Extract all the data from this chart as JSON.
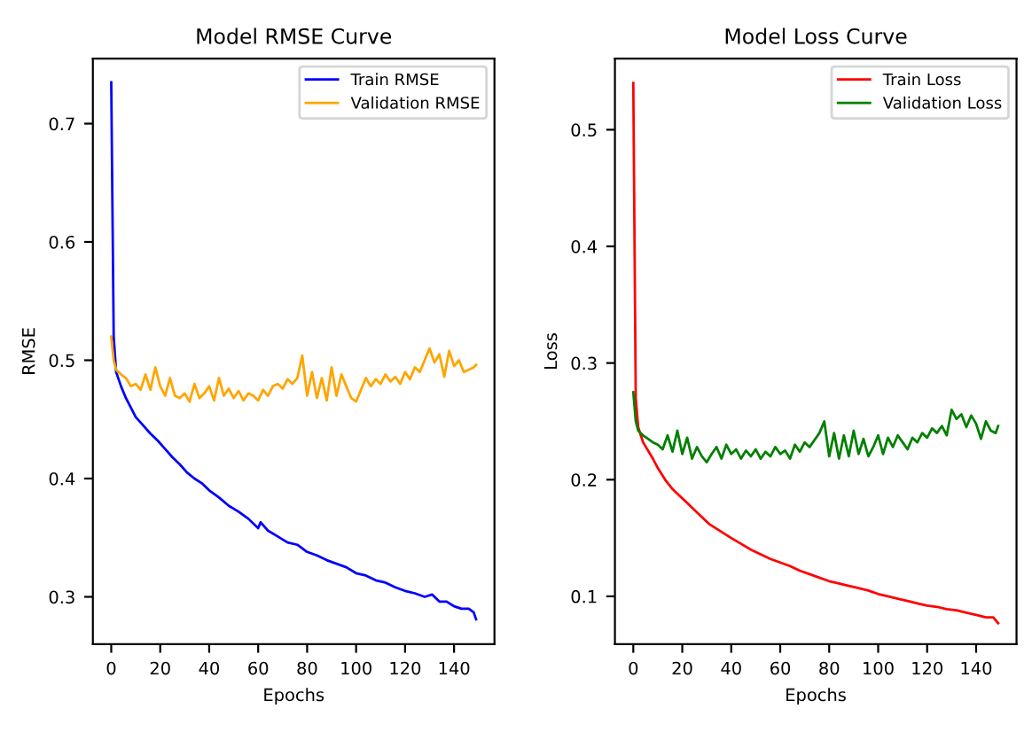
{
  "chart_data": [
    {
      "type": "line",
      "title": "Model RMSE Curve",
      "xlabel": "Epochs",
      "ylabel": "RMSE",
      "xlim": [
        -7.5,
        156.5
      ],
      "xticks": [
        0,
        20,
        40,
        60,
        80,
        100,
        120,
        140
      ],
      "ylim": [
        0.26,
        0.755
      ],
      "yticks": [
        0.3,
        0.4,
        0.5,
        0.6,
        0.7
      ],
      "grid": false,
      "legend": "top right",
      "series": [
        {
          "name": "Train RMSE",
          "color": "#0000ff",
          "x": [
            0,
            1,
            2,
            4,
            6,
            8,
            10,
            13,
            16,
            19,
            22,
            25,
            28,
            31,
            34,
            37,
            40,
            44,
            48,
            52,
            56,
            60,
            61,
            64,
            68,
            72,
            76,
            80,
            84,
            88,
            92,
            96,
            100,
            104,
            108,
            112,
            116,
            120,
            124,
            128,
            131,
            134,
            137,
            140,
            143,
            146,
            148,
            149
          ],
          "values": [
            0.735,
            0.52,
            0.49,
            0.478,
            0.468,
            0.46,
            0.452,
            0.445,
            0.438,
            0.432,
            0.425,
            0.418,
            0.412,
            0.405,
            0.4,
            0.396,
            0.39,
            0.384,
            0.377,
            0.372,
            0.366,
            0.358,
            0.363,
            0.356,
            0.351,
            0.346,
            0.344,
            0.338,
            0.335,
            0.331,
            0.328,
            0.325,
            0.32,
            0.318,
            0.314,
            0.312,
            0.308,
            0.305,
            0.303,
            0.3,
            0.302,
            0.296,
            0.296,
            0.292,
            0.29,
            0.29,
            0.287,
            0.281
          ]
        },
        {
          "name": "Validation RMSE",
          "color": "#ffa500",
          "x": [
            0,
            1,
            2,
            4,
            6,
            8,
            10,
            12,
            14,
            16,
            18,
            20,
            22,
            24,
            26,
            28,
            30,
            32,
            34,
            36,
            38,
            40,
            42,
            44,
            46,
            48,
            50,
            52,
            54,
            56,
            58,
            60,
            62,
            64,
            66,
            68,
            70,
            72,
            74,
            76,
            78,
            80,
            82,
            84,
            86,
            88,
            90,
            92,
            94,
            96,
            98,
            100,
            102,
            104,
            106,
            108,
            110,
            112,
            114,
            116,
            118,
            120,
            122,
            124,
            126,
            128,
            130,
            132,
            134,
            136,
            138,
            140,
            142,
            144,
            146,
            148,
            149
          ],
          "values": [
            0.52,
            0.5,
            0.492,
            0.488,
            0.485,
            0.478,
            0.48,
            0.475,
            0.488,
            0.475,
            0.494,
            0.478,
            0.47,
            0.485,
            0.47,
            0.468,
            0.472,
            0.465,
            0.48,
            0.468,
            0.472,
            0.478,
            0.466,
            0.485,
            0.47,
            0.476,
            0.468,
            0.474,
            0.466,
            0.472,
            0.47,
            0.466,
            0.475,
            0.47,
            0.478,
            0.48,
            0.476,
            0.484,
            0.48,
            0.485,
            0.504,
            0.47,
            0.49,
            0.468,
            0.485,
            0.466,
            0.494,
            0.47,
            0.488,
            0.478,
            0.468,
            0.465,
            0.475,
            0.485,
            0.478,
            0.484,
            0.48,
            0.488,
            0.482,
            0.486,
            0.48,
            0.49,
            0.484,
            0.494,
            0.49,
            0.5,
            0.51,
            0.498,
            0.505,
            0.486,
            0.508,
            0.495,
            0.5,
            0.49,
            0.492,
            0.494,
            0.496
          ]
        }
      ]
    },
    {
      "type": "line",
      "title": "Model Loss Curve",
      "xlabel": "Epochs",
      "ylabel": "Loss",
      "xlim": [
        -7.5,
        156.5
      ],
      "xticks": [
        0,
        20,
        40,
        60,
        80,
        100,
        120,
        140
      ],
      "ylim": [
        0.059,
        0.561
      ],
      "yticks": [
        0.1,
        0.2,
        0.3,
        0.4,
        0.5
      ],
      "grid": false,
      "legend": "top right",
      "series": [
        {
          "name": "Train Loss",
          "color": "#ff0000",
          "x": [
            0,
            1,
            2,
            4,
            6,
            8,
            10,
            13,
            16,
            19,
            22,
            25,
            28,
            31,
            34,
            37,
            40,
            44,
            48,
            52,
            56,
            60,
            64,
            68,
            72,
            76,
            80,
            84,
            88,
            92,
            96,
            100,
            104,
            108,
            112,
            116,
            120,
            124,
            128,
            132,
            136,
            140,
            144,
            147,
            149
          ],
          "values": [
            0.54,
            0.27,
            0.245,
            0.232,
            0.225,
            0.218,
            0.21,
            0.2,
            0.192,
            0.186,
            0.18,
            0.174,
            0.168,
            0.162,
            0.158,
            0.154,
            0.15,
            0.145,
            0.14,
            0.136,
            0.132,
            0.129,
            0.126,
            0.122,
            0.119,
            0.116,
            0.113,
            0.111,
            0.109,
            0.107,
            0.105,
            0.102,
            0.1,
            0.098,
            0.096,
            0.094,
            0.092,
            0.091,
            0.089,
            0.088,
            0.086,
            0.084,
            0.082,
            0.082,
            0.077
          ]
        },
        {
          "name": "Validation Loss",
          "color": "#008000",
          "x": [
            0,
            1,
            2,
            4,
            6,
            8,
            10,
            12,
            14,
            16,
            18,
            20,
            22,
            24,
            26,
            28,
            30,
            32,
            34,
            36,
            38,
            40,
            42,
            44,
            46,
            48,
            50,
            52,
            54,
            56,
            58,
            60,
            62,
            64,
            66,
            68,
            70,
            72,
            74,
            76,
            78,
            80,
            82,
            84,
            86,
            88,
            90,
            92,
            94,
            96,
            98,
            100,
            102,
            104,
            106,
            108,
            110,
            112,
            114,
            116,
            118,
            120,
            122,
            124,
            126,
            128,
            130,
            132,
            134,
            136,
            138,
            140,
            142,
            144,
            146,
            148,
            149
          ],
          "values": [
            0.275,
            0.25,
            0.242,
            0.238,
            0.235,
            0.232,
            0.23,
            0.226,
            0.238,
            0.224,
            0.242,
            0.222,
            0.236,
            0.218,
            0.228,
            0.22,
            0.215,
            0.222,
            0.228,
            0.218,
            0.23,
            0.222,
            0.226,
            0.218,
            0.225,
            0.22,
            0.226,
            0.218,
            0.224,
            0.22,
            0.228,
            0.222,
            0.225,
            0.218,
            0.23,
            0.224,
            0.232,
            0.228,
            0.234,
            0.24,
            0.25,
            0.22,
            0.24,
            0.218,
            0.238,
            0.22,
            0.242,
            0.222,
            0.235,
            0.22,
            0.228,
            0.238,
            0.222,
            0.236,
            0.228,
            0.238,
            0.232,
            0.226,
            0.236,
            0.232,
            0.24,
            0.236,
            0.244,
            0.24,
            0.246,
            0.238,
            0.26,
            0.252,
            0.256,
            0.245,
            0.255,
            0.248,
            0.235,
            0.25,
            0.242,
            0.24,
            0.246
          ]
        }
      ]
    }
  ]
}
